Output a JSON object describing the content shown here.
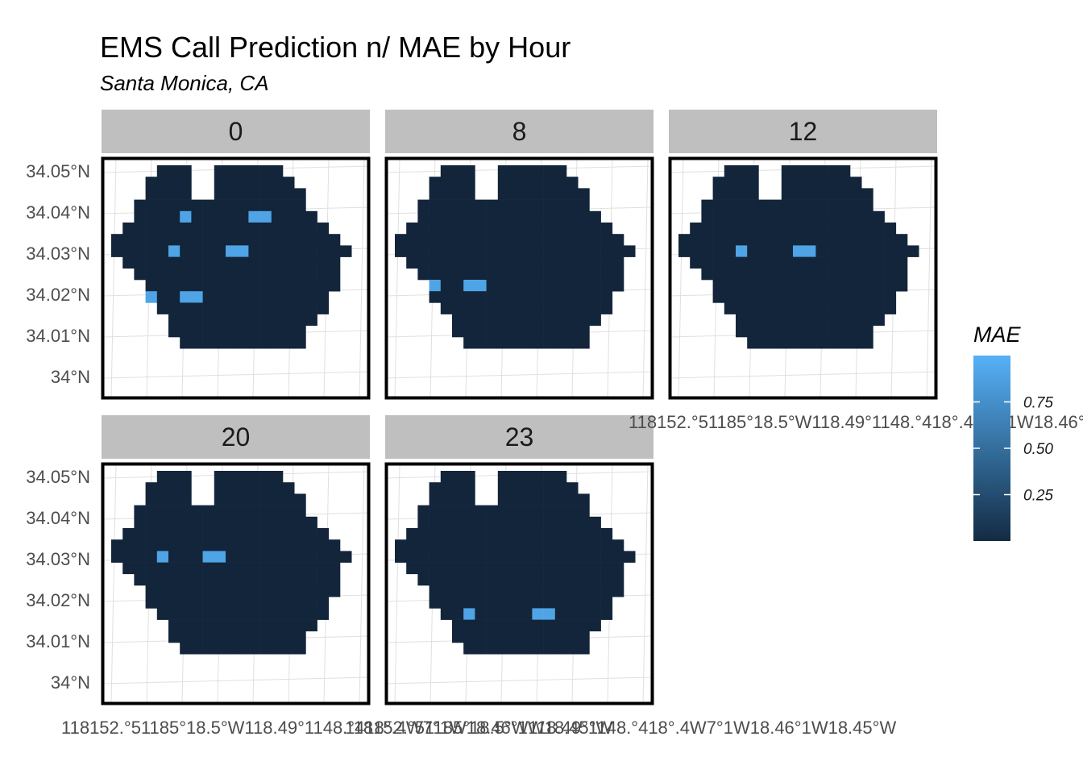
{
  "chart_data": {
    "type": "heatmap",
    "title": "EMS Call Prediction n/ MAE by Hour",
    "subtitle": "Santa Monica, CA",
    "facet_labels": [
      "0",
      "8",
      "12",
      "20",
      "23"
    ],
    "y_tick_labels": [
      "34.05°N",
      "34.04°N",
      "34.03°N",
      "34.02°N",
      "34.01°N",
      "34°N"
    ],
    "y_ticks": [
      34.05,
      34.04,
      34.03,
      34.02,
      34.01,
      34.0
    ],
    "x_tick_labels": [
      "118.52°W",
      "118.51°W",
      "118.5°W",
      "118.49°W",
      "118.48°W",
      "118.47°W",
      "118.46°W",
      "118.45°W"
    ],
    "x_tick_text": "118152.°51185°18.5°W118.49°1148.°418°.4W7°1W18.46°1W18.45°W",
    "legend": {
      "title": "MAE",
      "ticks": [
        0.75,
        0.5,
        0.25
      ],
      "tick_labels": [
        "0.75",
        "0.50",
        "0.25"
      ],
      "range": [
        0.0,
        1.0
      ],
      "low_color": "#132B43",
      "high_color": "#56B1F7"
    },
    "cell_color": "#13253a",
    "panels": [
      {
        "hour": "0",
        "high_mae_cells": [
          [
            6,
            4
          ],
          [
            5,
            7
          ],
          [
            3,
            11
          ]
        ],
        "mae": 0.9
      },
      {
        "hour": "8",
        "high_mae_cells": [
          [
            3,
            10
          ]
        ],
        "mae": 0.9
      },
      {
        "hour": "12",
        "high_mae_cells": [
          [
            5,
            7
          ]
        ],
        "mae": 0.9
      },
      {
        "hour": "20",
        "high_mae_cells": [
          [
            4,
            7
          ]
        ],
        "mae": 0.9
      },
      {
        "hour": "23",
        "high_mae_cells": [
          [
            6,
            12
          ]
        ],
        "mae": 0.9
      }
    ],
    "grid_rows": [
      [
        4,
        4
      ],
      [
        3,
        5
      ],
      [
        3,
        6
      ],
      [
        2,
        6
      ],
      [
        2,
        7
      ],
      [
        1,
        8
      ],
      [
        0,
        9
      ],
      [
        0,
        10
      ],
      [
        1,
        9
      ],
      [
        2,
        9
      ],
      [
        3,
        9
      ],
      [
        3,
        8
      ],
      [
        4,
        8
      ],
      [
        5,
        7
      ],
      [
        5,
        6
      ],
      [
        6,
        6
      ]
    ]
  }
}
